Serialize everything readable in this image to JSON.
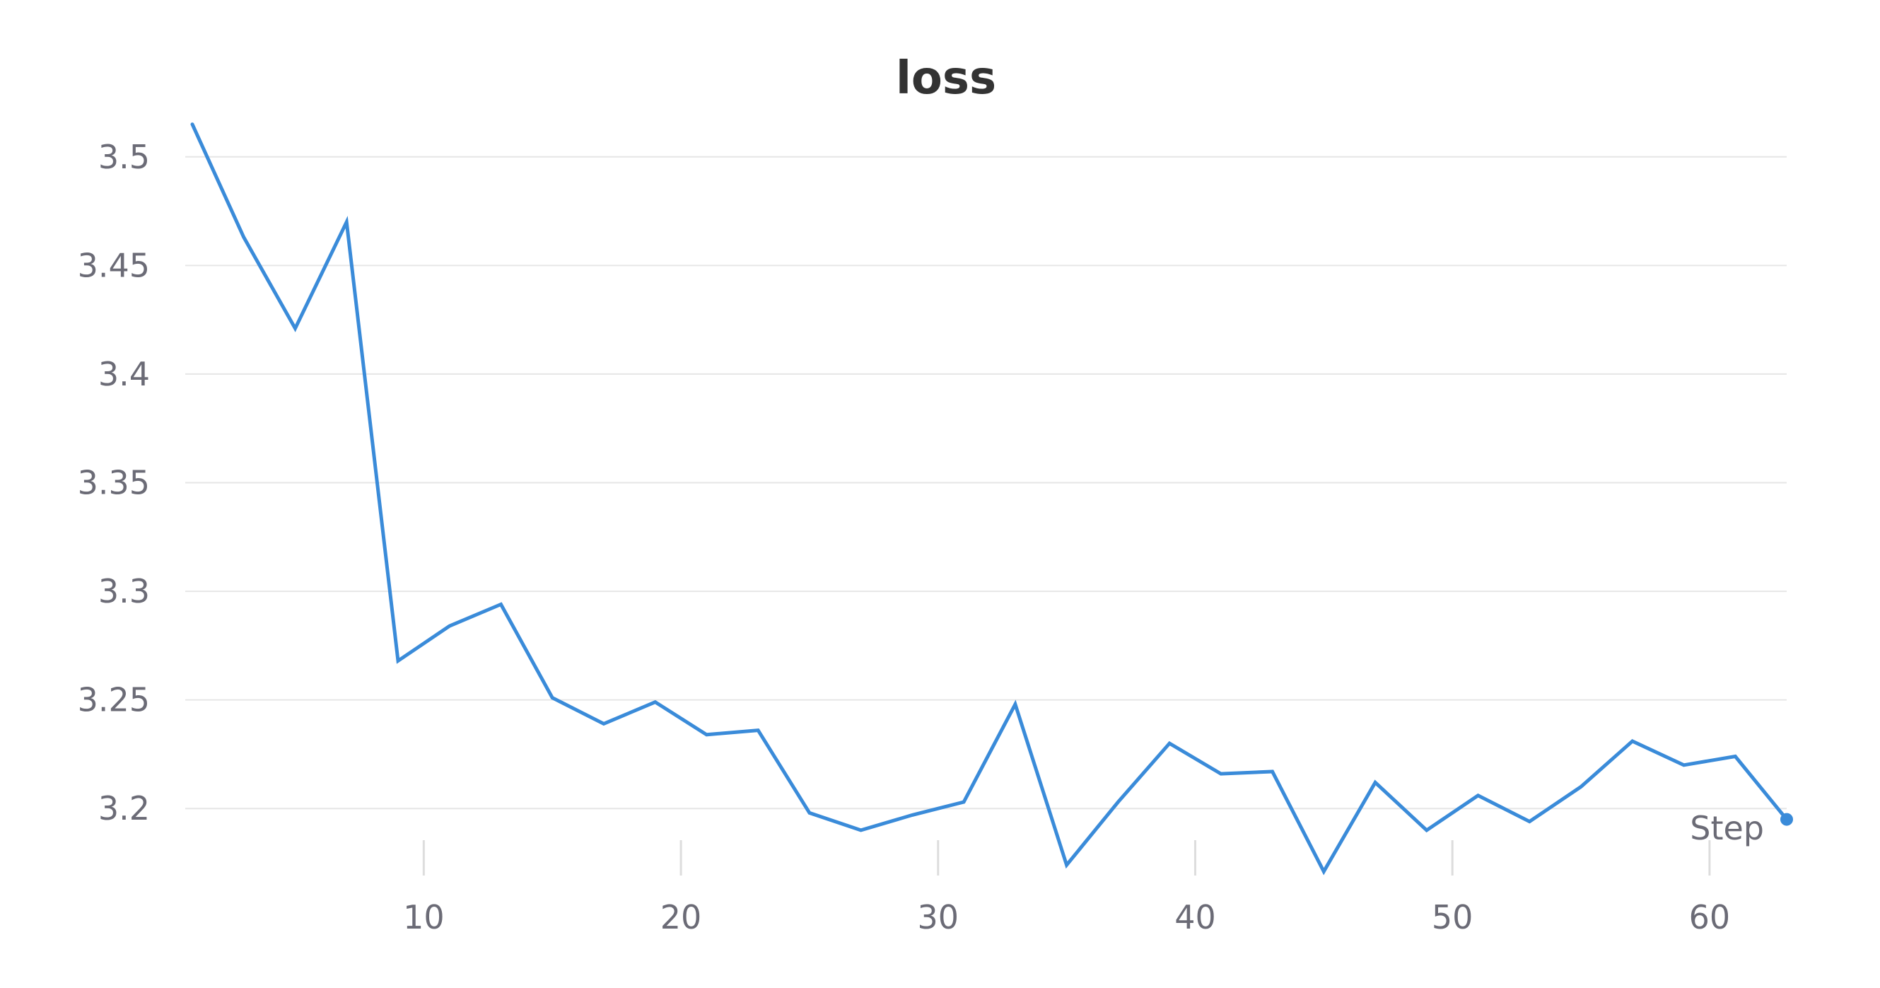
{
  "chart_data": {
    "type": "line",
    "title": "loss",
    "xlabel": "Step",
    "ylabel": "",
    "xlim": [
      1,
      63
    ],
    "ylim": [
      3.175,
      3.525
    ],
    "x_ticks": [
      10,
      20,
      30,
      40,
      50,
      60
    ],
    "y_ticks": [
      "3.2",
      "3.25",
      "3.3",
      "3.35",
      "3.4",
      "3.45",
      "3.5"
    ],
    "grid": true,
    "legend": "none",
    "series": [
      {
        "color": "#3a8bd9",
        "end_marker": true,
        "x": [
          1,
          3,
          5,
          7,
          9,
          11,
          13,
          15,
          17,
          19,
          21,
          23,
          25,
          27,
          29,
          31,
          33,
          35,
          37,
          39,
          41,
          43,
          45,
          47,
          49,
          51,
          53,
          55,
          57,
          59,
          61,
          63
        ],
        "y": [
          3.515,
          3.463,
          3.421,
          3.47,
          3.268,
          3.284,
          3.294,
          3.251,
          3.239,
          3.249,
          3.234,
          3.236,
          3.198,
          3.19,
          3.197,
          3.203,
          3.248,
          3.174,
          3.203,
          3.23,
          3.216,
          3.217,
          3.171,
          3.212,
          3.19,
          3.206,
          3.194,
          3.21,
          3.231,
          3.22,
          3.224,
          3.195
        ]
      }
    ]
  }
}
